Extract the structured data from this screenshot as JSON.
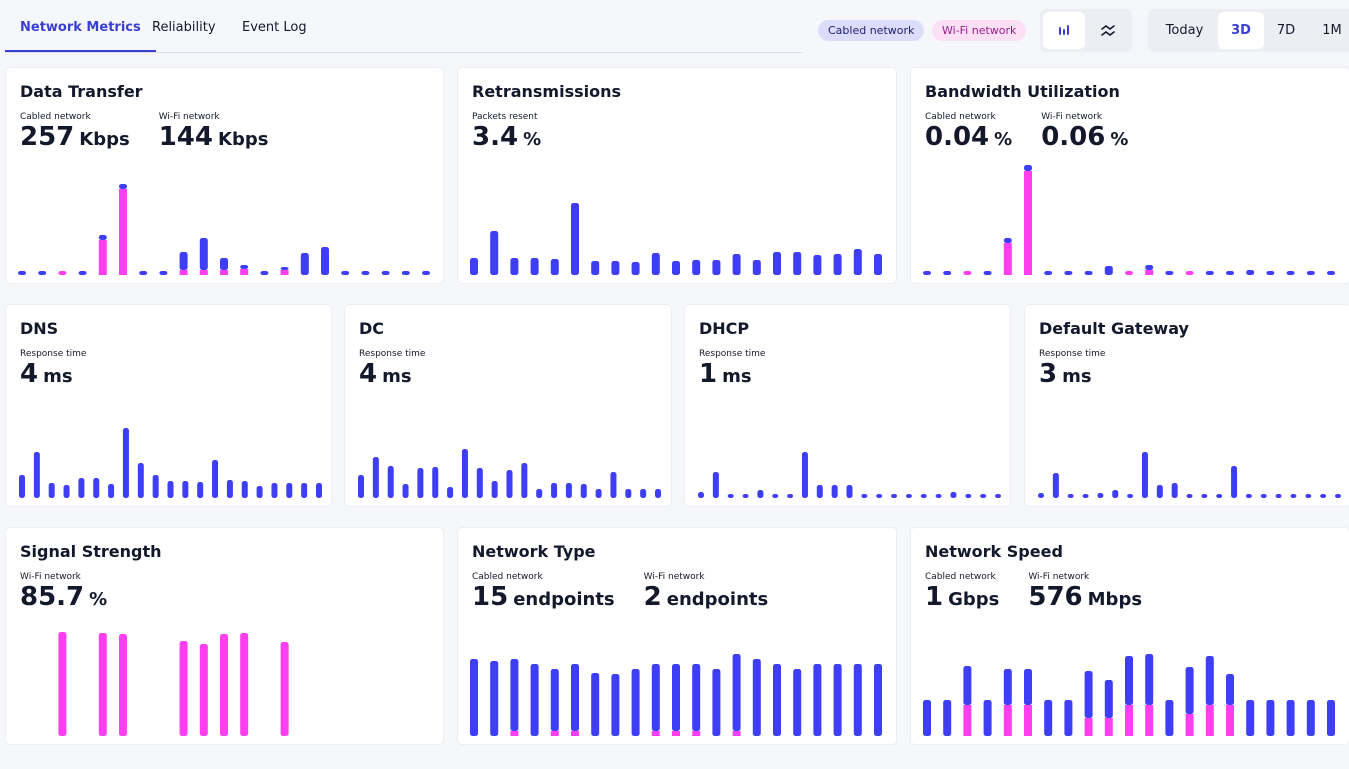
{
  "tabs": [
    "Network Metrics",
    "Reliability",
    "Event Log"
  ],
  "active_tab": 0,
  "legend": [
    {
      "name": "Cabled network",
      "color": "#3d3ef5",
      "bg": "#dcddfb"
    },
    {
      "name": "Wi-Fi network",
      "color": "#ff3ef0",
      "bg": "#fde0f6"
    }
  ],
  "active_view": 0,
  "ranges": [
    "Today",
    "3D",
    "7D",
    "1M"
  ],
  "active_range": 1,
  "cards": [
    {
      "title": "Data Transfer",
      "metrics": [
        {
          "label": "Cabled network",
          "value": 257,
          "unit": "Kbps"
        },
        {
          "label": "Wi-Fi network",
          "value": 144,
          "unit": "Kbps"
        }
      ],
      "ylim": [
        0,
        110
      ],
      "bars": {
        "wifi": [
          null,
          null,
          4,
          null,
          35,
          86,
          null,
          null,
          5,
          5,
          5,
          6,
          null,
          5,
          null,
          null,
          null,
          null,
          null,
          null,
          null
        ],
        "cabled": [
          4,
          4,
          null,
          4,
          5,
          5,
          4,
          4,
          18,
          32,
          12,
          4,
          4,
          3,
          22,
          28,
          4,
          4,
          4,
          4,
          4
        ]
      }
    },
    {
      "title": "Retransmissions",
      "metrics": [
        {
          "label": "Packets resent",
          "value": 3.4,
          "unit": "%"
        }
      ],
      "ylim": [
        0,
        110
      ],
      "bars": {
        "cabled": [
          17,
          44,
          17,
          17,
          16,
          72,
          14,
          14,
          13,
          22,
          14,
          15,
          15,
          21,
          15,
          23,
          23,
          20,
          21,
          26,
          21
        ]
      }
    },
    {
      "title": "Bandwidth Utilization",
      "metrics": [
        {
          "label": "Cabled network",
          "value": 0.04,
          "unit": "%"
        },
        {
          "label": "Wi-Fi network",
          "value": 0.06,
          "unit": "%"
        }
      ],
      "ylim": [
        0,
        110
      ],
      "bars": {
        "wifi": [
          null,
          null,
          4,
          null,
          32,
          104,
          null,
          null,
          null,
          null,
          4,
          5,
          null,
          4,
          null,
          null,
          null,
          null,
          null,
          null,
          null
        ],
        "cabled": [
          4,
          4,
          null,
          4,
          5,
          6,
          4,
          4,
          4,
          9,
          null,
          5,
          4,
          null,
          4,
          4,
          5,
          4,
          4,
          4,
          4
        ]
      }
    },
    {
      "title": "DNS",
      "metrics": [
        {
          "label": "Response time",
          "value": 4,
          "unit": "ms"
        }
      ],
      "ylim": [
        0,
        80
      ],
      "bars": {
        "cabled": [
          23,
          46,
          15,
          13,
          20,
          20,
          14,
          70,
          35,
          23,
          17,
          17,
          16,
          38,
          18,
          17,
          12,
          15,
          15,
          15,
          15
        ]
      }
    },
    {
      "title": "DC",
      "metrics": [
        {
          "label": "Response time",
          "value": 4,
          "unit": "ms"
        }
      ],
      "ylim": [
        0,
        80
      ],
      "bars": {
        "cabled": [
          23,
          41,
          32,
          14,
          30,
          31,
          11,
          49,
          30,
          17,
          28,
          35,
          9,
          15,
          15,
          14,
          9,
          26,
          9,
          9,
          9
        ]
      }
    },
    {
      "title": "DHCP",
      "metrics": [
        {
          "label": "Response time",
          "value": 1,
          "unit": "ms"
        }
      ],
      "ylim": [
        0,
        80
      ],
      "bars": {
        "cabled": [
          6,
          26,
          4,
          4,
          8,
          4,
          4,
          46,
          13,
          13,
          13,
          4,
          4,
          4,
          4,
          4,
          4,
          6,
          4,
          4,
          4
        ]
      }
    },
    {
      "title": "Default Gateway",
      "metrics": [
        {
          "label": "Response time",
          "value": 3,
          "unit": "ms"
        }
      ],
      "ylim": [
        0,
        80
      ],
      "bars": {
        "cabled": [
          5,
          25,
          4,
          4,
          5,
          8,
          4,
          46,
          13,
          15,
          4,
          4,
          4,
          32,
          4,
          4,
          4,
          4,
          4,
          4,
          4
        ]
      }
    },
    {
      "title": "Signal Strength",
      "metrics": [
        {
          "label": "Wi-Fi network",
          "value": 85.7,
          "unit": "%"
        }
      ],
      "ylim": [
        0,
        115
      ],
      "bars": {
        "wifi": [
          null,
          null,
          104,
          null,
          103,
          102,
          null,
          null,
          95,
          92,
          102,
          103,
          null,
          94,
          null,
          null,
          null,
          null,
          null,
          null,
          null
        ]
      }
    },
    {
      "title": "Network Type",
      "metrics": [
        {
          "label": "Cabled network",
          "value": 15,
          "unit": "endpoints"
        },
        {
          "label": "Wi-Fi network",
          "value": 2,
          "unit": "endpoints"
        }
      ],
      "ylim": [
        0,
        115
      ],
      "bars": {
        "wifi": [
          null,
          null,
          5,
          null,
          5,
          5,
          null,
          null,
          null,
          5,
          5,
          5,
          null,
          5,
          null,
          null,
          null,
          null,
          null,
          null,
          null
        ],
        "cabled": [
          77,
          75,
          72,
          72,
          62,
          67,
          63,
          62,
          67,
          67,
          67,
          67,
          67,
          77,
          77,
          72,
          67,
          72,
          72,
          72,
          72
        ]
      }
    },
    {
      "title": "Network Speed",
      "metrics": [
        {
          "label": "Cabled network",
          "value": 1,
          "unit": "Gbps"
        },
        {
          "label": "Wi-Fi network",
          "value": 576,
          "unit": "Mbps"
        }
      ],
      "ylim": [
        0,
        115
      ],
      "bars": {
        "wifi": [
          null,
          null,
          31,
          null,
          31,
          31,
          null,
          null,
          18,
          18,
          31,
          31,
          null,
          22,
          31,
          31,
          null,
          null,
          null,
          null,
          null
        ],
        "cabled": [
          36,
          36,
          39,
          36,
          36,
          36,
          36,
          36,
          47,
          38,
          49,
          51,
          36,
          47,
          49,
          31,
          36,
          36,
          36,
          36,
          36
        ]
      }
    }
  ]
}
